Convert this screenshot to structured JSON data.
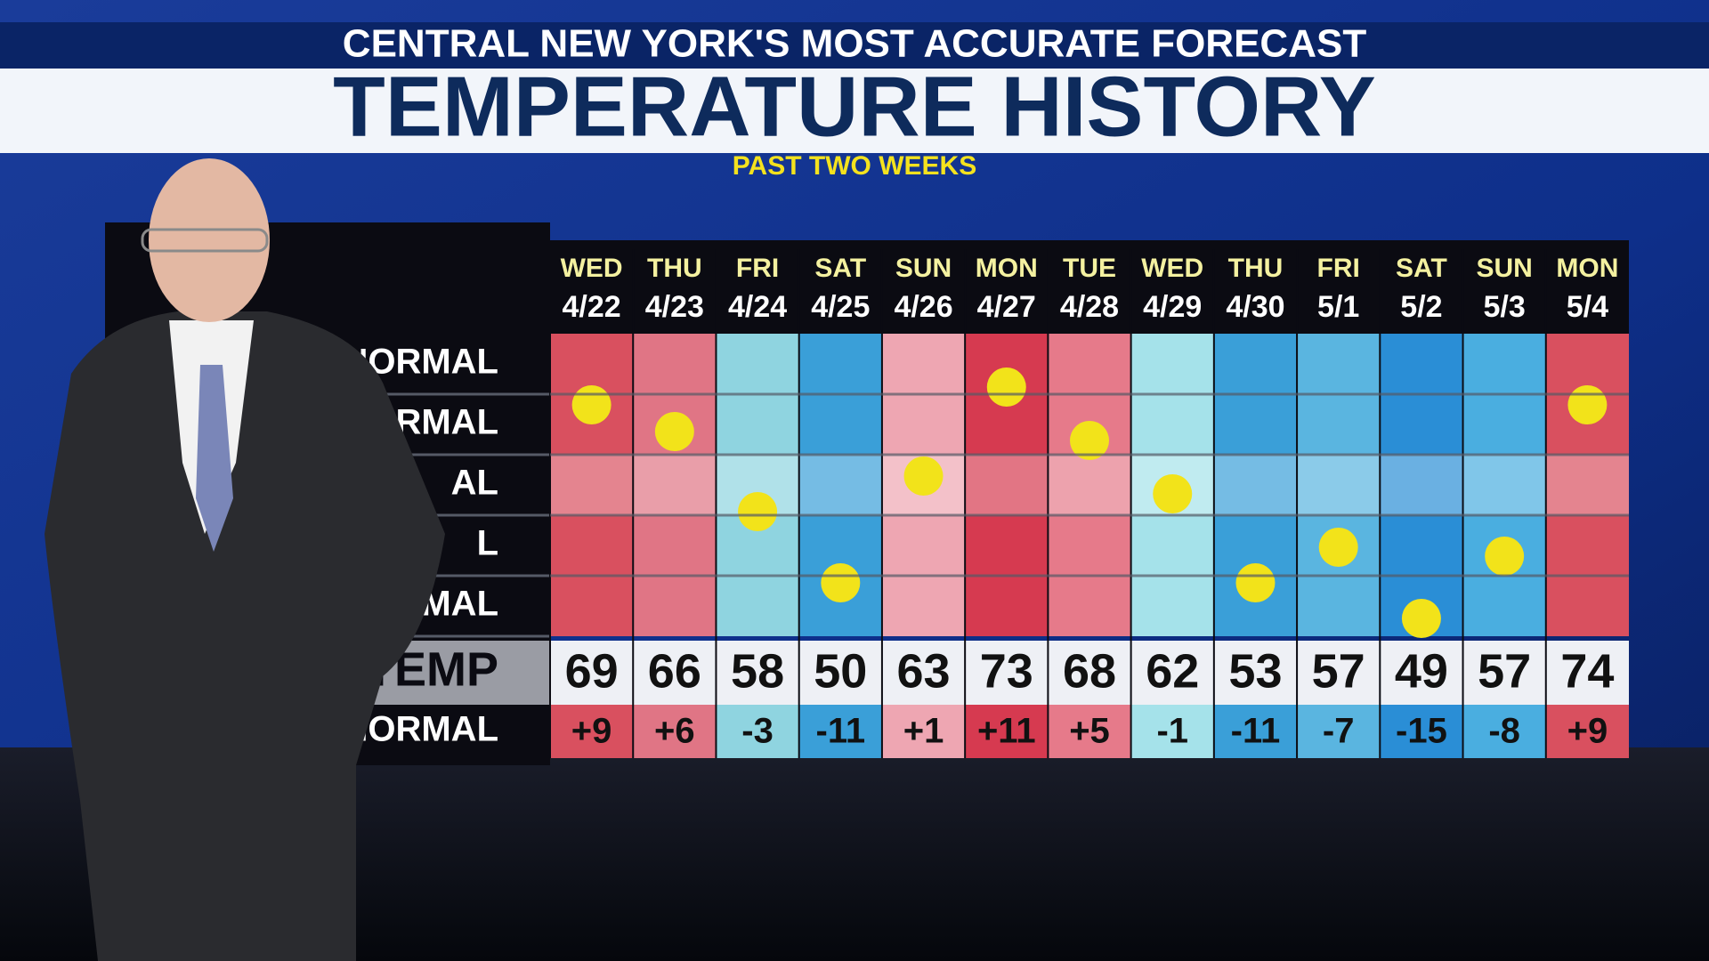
{
  "header": {
    "tagline": "CENTRAL NEW YORK'S MOST ACCURATE FORECAST",
    "title": "TEMPERATURE HISTORY",
    "subtitle": "PAST TWO WEEKS"
  },
  "row_labels": [
    "OVE NORMAL",
    "RMAL",
    "AL",
    "L",
    "RMAL",
    "TEMP",
    "NORMAL"
  ],
  "days": [
    {
      "day": "WED",
      "date": "4/22",
      "temp": "69",
      "departure": "+9",
      "color": "#d9505f"
    },
    {
      "day": "THU",
      "date": "4/23",
      "temp": "66",
      "departure": "+6",
      "color": "#e07585"
    },
    {
      "day": "FRI",
      "date": "4/24",
      "temp": "58",
      "departure": "-3",
      "color": "#8fd4e0"
    },
    {
      "day": "SAT",
      "date": "4/25",
      "temp": "50",
      "departure": "-11",
      "color": "#3a9fd8"
    },
    {
      "day": "SUN",
      "date": "4/26",
      "temp": "63",
      "departure": "+1",
      "color": "#eea6b2"
    },
    {
      "day": "MON",
      "date": "4/27",
      "temp": "73",
      "departure": "+11",
      "color": "#d63a50"
    },
    {
      "day": "TUE",
      "date": "4/28",
      "temp": "68",
      "departure": "+5",
      "color": "#e67a8a"
    },
    {
      "day": "WED",
      "date": "4/29",
      "temp": "62",
      "departure": "-1",
      "color": "#a5e2ea"
    },
    {
      "day": "THU",
      "date": "4/30",
      "temp": "53",
      "departure": "-11",
      "color": "#3a9fd8"
    },
    {
      "day": "FRI",
      "date": "5/1",
      "temp": "57",
      "departure": "-7",
      "color": "#5ab5e0"
    },
    {
      "day": "SAT",
      "date": "5/2",
      "temp": "49",
      "departure": "-15",
      "color": "#2a8ed6"
    },
    {
      "day": "SUN",
      "date": "5/3",
      "temp": "57",
      "departure": "-8",
      "color": "#4aaee0"
    },
    {
      "day": "MON",
      "date": "5/4",
      "temp": "74",
      "departure": "+9",
      "color": "#d9505f"
    }
  ]
}
